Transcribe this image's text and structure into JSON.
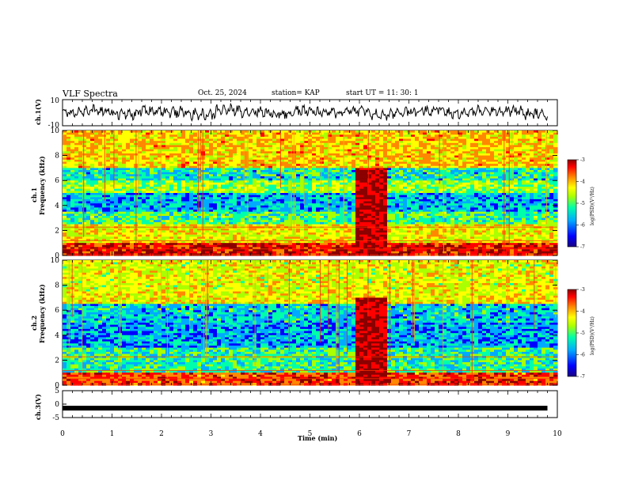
{
  "header": {
    "title": "VLF Spectra",
    "date": "Oct. 25, 2024",
    "station": "station= KAP",
    "start_ut": "start  UT =   11: 30: 1"
  },
  "colors": {
    "spectrogram_scale": [
      "#1a0080",
      "#0000ff",
      "#00aaff",
      "#00ffaa",
      "#aaff00",
      "#ffff00",
      "#ff8800",
      "#ff0000",
      "#8b0000"
    ]
  },
  "chart_data": [
    {
      "type": "line",
      "panel": "ch1-waveform",
      "ylabel": "ch.1(V)",
      "ylim": [
        -10,
        10
      ],
      "yticks": [
        "10",
        "-10"
      ],
      "x_range": [
        0,
        10
      ],
      "description_values": "noisy waveform oscillating roughly between -6 and 8 V",
      "values_sample": [
        2,
        4,
        -3,
        5,
        1,
        -4,
        6,
        3,
        -2,
        4,
        0,
        5,
        -5,
        2,
        6,
        -1,
        3,
        4,
        -3,
        1
      ]
    },
    {
      "type": "heatmap",
      "panel": "ch1-spectrogram",
      "ylabel": "ch.1\nFrequency (kHz)",
      "ylabel_line1": "ch.1",
      "ylabel_line2": "Frequency (kHz)",
      "ylim": [
        0,
        10
      ],
      "yticks": [
        "0",
        "2",
        "4",
        "6",
        "8",
        "10"
      ],
      "xlim": [
        0,
        10
      ],
      "colorbar": {
        "label": "log(PSD)(V²/Hz)",
        "range": [
          -7,
          -3
        ],
        "ticks": [
          "-3",
          "-4",
          "-5",
          "-6",
          "-7"
        ]
      },
      "bands_khz_level": [
        {
          "from": 0,
          "to": 1,
          "level": -3.6
        },
        {
          "from": 1,
          "to": 2.5,
          "level": -4.6
        },
        {
          "from": 2.5,
          "to": 3.5,
          "level": -5.3
        },
        {
          "from": 3.5,
          "to": 5,
          "level": -5.8
        },
        {
          "from": 5,
          "to": 6,
          "level": -5.0
        },
        {
          "from": 6,
          "to": 7,
          "level": -5.6
        },
        {
          "from": 7,
          "to": 10,
          "level": -4.4
        }
      ],
      "burst_minutes": [
        5.9,
        6.5
      ]
    },
    {
      "type": "heatmap",
      "panel": "ch2-spectrogram",
      "ylabel_line1": "ch.2",
      "ylabel_line2": "Frequency (kHz)",
      "ylim": [
        0,
        10
      ],
      "yticks": [
        "0",
        "2",
        "4",
        "6",
        "8",
        "10"
      ],
      "xlim": [
        0,
        10
      ],
      "colorbar": {
        "label": "log(PSD)(V²/Hz)",
        "range": [
          -7,
          -3
        ],
        "ticks": [
          "-3",
          "-4",
          "-5",
          "-6",
          "-7"
        ]
      },
      "bands_khz_level": [
        {
          "from": 0,
          "to": 1,
          "level": -3.8
        },
        {
          "from": 1,
          "to": 3,
          "level": -5.4
        },
        {
          "from": 3,
          "to": 5,
          "level": -5.9
        },
        {
          "from": 5,
          "to": 6.5,
          "level": -5.7
        },
        {
          "from": 6.5,
          "to": 7.5,
          "level": -4.6
        },
        {
          "from": 7.5,
          "to": 10,
          "level": -4.7
        }
      ],
      "burst_minutes": [
        5.9,
        6.5
      ]
    },
    {
      "type": "line",
      "panel": "ch3-waveform",
      "ylabel": "ch.3(V)",
      "ylim": [
        -5,
        5
      ],
      "yticks": [
        "5",
        "0",
        "-5"
      ],
      "x_range": [
        0,
        9.8
      ],
      "constant_value": -1.5
    }
  ],
  "x_axis": {
    "label": "Time  (min)",
    "ticks": [
      "0",
      "1",
      "2",
      "3",
      "4",
      "5",
      "6",
      "7",
      "8",
      "9",
      "10"
    ]
  }
}
